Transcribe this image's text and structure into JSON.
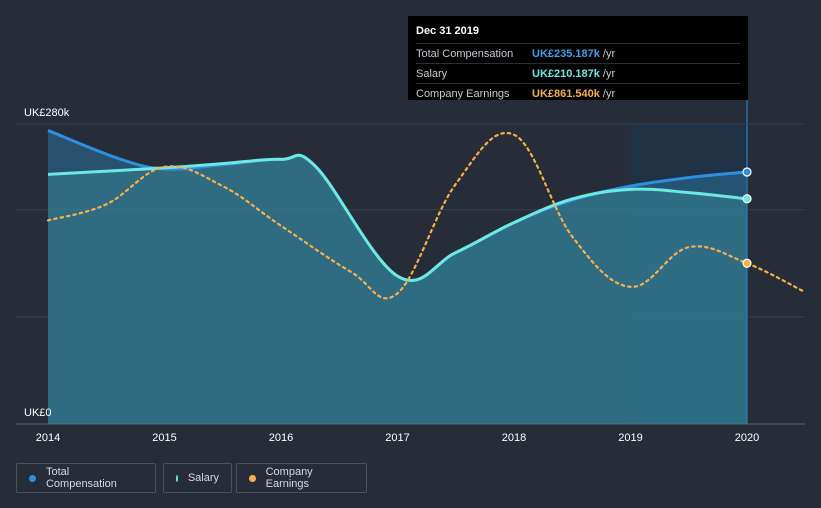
{
  "colors": {
    "background": "#262d38",
    "total": "#2e8fe0",
    "salary": "#6ee8e0",
    "earnings": "#f5b04d"
  },
  "chart_data": {
    "type": "line",
    "title": "",
    "x_tick_labels": [
      "2014",
      "2015",
      "2016",
      "2017",
      "2018",
      "2019",
      "2020"
    ],
    "y_tick_labels": [
      "UK£280k",
      "UK£0"
    ],
    "ylim": [
      0,
      280
    ],
    "xlim": [
      2014,
      2020.5
    ],
    "highlight_from": 2019,
    "series": [
      {
        "name": "Total Compensation",
        "key": "total",
        "x": [
          2014,
          2014.6,
          2015,
          2015.5,
          2016,
          2016.3,
          2017,
          2017.5,
          2018,
          2018.5,
          2019,
          2019.5,
          2020
        ],
        "y": [
          274,
          248,
          238,
          242,
          247,
          240,
          138,
          160,
          188,
          209,
          222,
          230,
          235.2
        ]
      },
      {
        "name": "Salary",
        "key": "salary",
        "x": [
          2014,
          2015,
          2015.5,
          2016,
          2016.3,
          2017,
          2017.5,
          2018,
          2018.5,
          2019,
          2019.5,
          2020
        ],
        "y": [
          233,
          239,
          243,
          247,
          240,
          138,
          160,
          188,
          210,
          219,
          216,
          210.2
        ]
      },
      {
        "name": "Company Earnings",
        "key": "earnings",
        "x": [
          2014,
          2014.5,
          2015,
          2015.5,
          2016,
          2016.6,
          2017,
          2017.5,
          2018,
          2018.5,
          2019,
          2019.5,
          2020,
          2020.5
        ],
        "y": [
          190,
          205,
          240,
          222,
          185,
          142,
          122,
          224,
          270,
          175,
          128,
          165,
          150,
          123
        ]
      }
    ],
    "legend": [
      "Total Compensation",
      "Salary",
      "Company Earnings"
    ],
    "legend_position": "bottom-left"
  },
  "tooltip": {
    "title": "Dec 31 2019",
    "rows": [
      {
        "label": "Total Compensation",
        "value": "UK£235.187k",
        "unit": "/yr"
      },
      {
        "label": "Salary",
        "value": "UK£210.187k",
        "unit": "/yr"
      },
      {
        "label": "Company Earnings",
        "value": "UK£861.540k",
        "unit": "/yr"
      }
    ]
  },
  "legend": {
    "total": "Total Compensation",
    "salary": "Salary",
    "earnings": "Company Earnings"
  }
}
